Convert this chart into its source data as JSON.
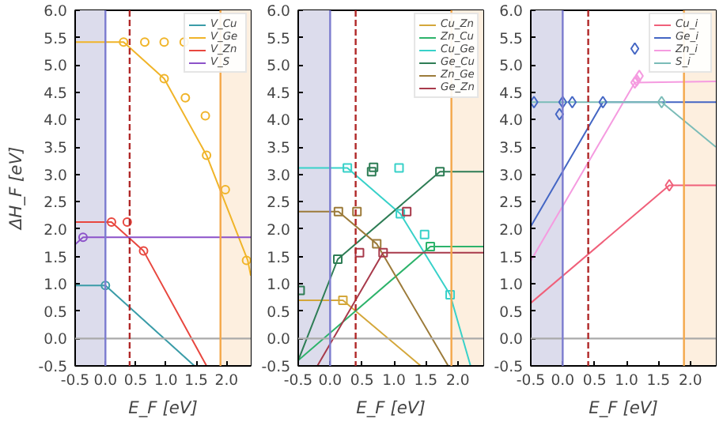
{
  "chart_data": [
    {
      "type": "line",
      "xlabel": "E_F [eV]",
      "ylabel": "ΔH_F [eV]",
      "xlim": [
        -0.5,
        2.4
      ],
      "ylim": [
        -0.5,
        6.0
      ],
      "xticks": [
        -0.5,
        {
          "value": 0,
          "label": "0.0"
        },
        0.5,
        {
          "value": 1,
          "label": "1.0"
        },
        1.5,
        {
          "value": 2,
          "label": "2.0"
        }
      ],
      "yticks": [
        -0.5,
        {
          "value": 0,
          "label": "0.0"
        },
        0.5,
        {
          "value": 1,
          "label": "1.0"
        },
        1.5,
        {
          "value": 2,
          "label": "2.0"
        },
        2.5,
        {
          "value": 3,
          "label": "3.0"
        },
        3.5,
        {
          "value": 4,
          "label": "4.0"
        },
        4.5,
        {
          "value": 5,
          "label": "5.0"
        },
        5.5,
        {
          "value": 6,
          "label": "6.0"
        }
      ],
      "legend": "top right",
      "grid": false,
      "bands": [
        {
          "axis": "x",
          "from": -0.5,
          "to": 0.0,
          "color": "#dcdcec"
        },
        {
          "axis": "x",
          "from": 1.9,
          "to": 2.4,
          "color": "#fdefdf"
        }
      ],
      "ref_lines": [
        {
          "axis": "y",
          "value": 0.0,
          "color": "#aaaaaa"
        },
        {
          "axis": "x",
          "value": 0.0,
          "color": "#7c7cd0"
        },
        {
          "axis": "x",
          "value": 1.9,
          "color": "#f5a84a"
        },
        {
          "axis": "x",
          "value": 0.4,
          "color": "#b02828",
          "line_style": "dashed"
        }
      ],
      "series": [
        {
          "name": "V_Cu",
          "color": "#3a9ca8",
          "marker": "none",
          "x": [
            -0.5,
            0.0,
            1.47
          ],
          "values": [
            0.97,
            0.97,
            -0.5
          ]
        },
        {
          "name": "V_Ge",
          "color": "#f0b429",
          "marker": "none",
          "x": [
            -0.5,
            0.3,
            0.97,
            1.67,
            2.35,
            2.4
          ],
          "values": [
            5.42,
            5.42,
            4.75,
            3.35,
            1.43,
            1.15
          ]
        },
        {
          "name": "V_Zn",
          "color": "#e8473f",
          "marker": "none",
          "x": [
            -0.5,
            0.1,
            0.63,
            1.67
          ],
          "values": [
            2.13,
            2.13,
            1.6,
            -0.5
          ]
        },
        {
          "name": "V_S",
          "color": "#8c52c9",
          "marker": "none",
          "x": [
            -0.5,
            -0.37,
            2.4
          ],
          "values": [
            1.72,
            1.85,
            1.85
          ]
        },
        {
          "type": "scatter",
          "color": "#3a9ca8",
          "marker": "circle",
          "x": [
            0.0
          ],
          "values": [
            0.97
          ]
        },
        {
          "type": "scatter",
          "color": "#f0b429",
          "marker": "circle",
          "x": [
            0.3,
            0.97,
            1.67,
            2.33,
            0.65,
            0.97,
            1.3,
            1.32,
            1.65,
            1.98
          ],
          "values": [
            5.42,
            4.75,
            3.35,
            1.43,
            5.42,
            5.42,
            5.42,
            4.4,
            4.07,
            2.72
          ]
        },
        {
          "type": "scatter",
          "color": "#e8473f",
          "marker": "circle",
          "x": [
            0.1,
            0.63,
            0.36
          ],
          "values": [
            2.13,
            1.6,
            2.13
          ]
        },
        {
          "type": "scatter",
          "color": "#8c52c9",
          "marker": "circle",
          "x": [
            -0.37
          ],
          "values": [
            1.85
          ]
        }
      ]
    },
    {
      "type": "line",
      "xlabel": "E_F [eV]",
      "xlim": [
        -0.5,
        2.4
      ],
      "ylim": [
        -0.5,
        6.0
      ],
      "xticks": [
        -0.5,
        {
          "value": 0,
          "label": "0.0"
        },
        0.5,
        {
          "value": 1,
          "label": "1.0"
        },
        1.5,
        {
          "value": 2,
          "label": "2.0"
        }
      ],
      "yticks": [
        -0.5,
        {
          "value": 0,
          "label": "0.0"
        },
        0.5,
        {
          "value": 1,
          "label": "1.0"
        },
        1.5,
        {
          "value": 2,
          "label": "2.0"
        },
        2.5,
        {
          "value": 3,
          "label": "3.0"
        },
        3.5,
        {
          "value": 4,
          "label": "4.0"
        },
        4.5,
        {
          "value": 5,
          "label": "5.0"
        },
        5.5,
        {
          "value": 6,
          "label": "6.0"
        }
      ],
      "legend": "top right",
      "grid": false,
      "bands": [
        {
          "axis": "x",
          "from": -0.5,
          "to": 0.0,
          "color": "#dcdcec"
        },
        {
          "axis": "x",
          "from": 1.9,
          "to": 2.4,
          "color": "#fdefdf"
        }
      ],
      "ref_lines": [
        {
          "axis": "y",
          "value": 0.0,
          "color": "#aaaaaa"
        },
        {
          "axis": "x",
          "value": 0.0,
          "color": "#7c7cd0"
        },
        {
          "axis": "x",
          "value": 1.9,
          "color": "#f5a84a"
        },
        {
          "axis": "x",
          "value": 0.4,
          "color": "#b02828",
          "line_style": "dashed"
        }
      ],
      "series": [
        {
          "name": "Cu_Zn",
          "color": "#d4a73a",
          "marker": "none",
          "x": [
            -0.5,
            0.2,
            1.42
          ],
          "values": [
            0.7,
            0.7,
            -0.5
          ]
        },
        {
          "name": "Zn_Cu",
          "color": "#2db36b",
          "marker": "none",
          "x": [
            -0.5,
            1.57,
            2.4
          ],
          "values": [
            -0.4,
            1.68,
            1.68
          ]
        },
        {
          "name": "Cu_Ge",
          "color": "#38d1c9",
          "marker": "none",
          "x": [
            -0.5,
            0.27,
            1.1,
            1.88,
            2.2
          ],
          "values": [
            3.12,
            3.12,
            2.28,
            0.8,
            -0.5
          ]
        },
        {
          "name": "Ge_Cu",
          "color": "#2e7d55",
          "marker": "none",
          "x": [
            -0.5,
            0.12,
            1.72,
            2.4
          ],
          "values": [
            -0.4,
            1.45,
            3.05,
            3.05
          ]
        },
        {
          "name": "Zn_Ge",
          "color": "#9c7b3a",
          "marker": "none",
          "x": [
            -0.5,
            0.13,
            0.73,
            1.85
          ],
          "values": [
            2.32,
            2.32,
            1.73,
            -0.5
          ]
        },
        {
          "name": "Ge_Zn",
          "color": "#a83a4b",
          "marker": "none",
          "x": [
            -0.2,
            0.83,
            2.4
          ],
          "values": [
            -0.5,
            1.57,
            1.57
          ]
        },
        {
          "type": "scatter",
          "color": "#d4a73a",
          "marker": "square",
          "x": [
            0.2
          ],
          "values": [
            0.7
          ]
        },
        {
          "type": "scatter",
          "color": "#2db36b",
          "marker": "square",
          "x": [
            1.57
          ],
          "values": [
            1.68
          ]
        },
        {
          "type": "scatter",
          "color": "#38d1c9",
          "marker": "square",
          "x": [
            0.27,
            1.1,
            1.88,
            1.08,
            1.48
          ],
          "values": [
            3.12,
            2.28,
            0.8,
            3.12,
            1.9
          ]
        },
        {
          "type": "scatter",
          "color": "#2e7d55",
          "marker": "square",
          "x": [
            0.12,
            1.72,
            -0.47,
            0.65,
            0.68
          ],
          "values": [
            1.45,
            3.05,
            0.88,
            3.05,
            3.13
          ]
        },
        {
          "type": "scatter",
          "color": "#9c7b3a",
          "marker": "square",
          "x": [
            0.13,
            0.73,
            0.42
          ],
          "values": [
            2.32,
            1.73,
            2.32
          ]
        },
        {
          "type": "scatter",
          "color": "#a83a4b",
          "marker": "square",
          "x": [
            0.83,
            0.46,
            1.2
          ],
          "values": [
            1.57,
            1.57,
            2.32
          ]
        }
      ]
    },
    {
      "type": "line",
      "xlabel": "E_F [eV]",
      "xlim": [
        -0.5,
        2.4
      ],
      "ylim": [
        -0.5,
        6.0
      ],
      "xticks": [
        -0.5,
        {
          "value": 0,
          "label": "0.0"
        },
        0.5,
        {
          "value": 1,
          "label": "1.0"
        },
        1.5,
        {
          "value": 2,
          "label": "2.0"
        }
      ],
      "yticks": [
        -0.5,
        {
          "value": 0,
          "label": "0.0"
        },
        0.5,
        {
          "value": 1,
          "label": "1.0"
        },
        1.5,
        {
          "value": 2,
          "label": "2.0"
        },
        2.5,
        {
          "value": 3,
          "label": "3.0"
        },
        3.5,
        {
          "value": 4,
          "label": "4.0"
        },
        4.5,
        {
          "value": 5,
          "label": "5.0"
        },
        5.5,
        {
          "value": 6,
          "label": "6.0"
        }
      ],
      "legend": "top right",
      "grid": false,
      "bands": [
        {
          "axis": "x",
          "from": -0.5,
          "to": 0.0,
          "color": "#dcdcec"
        },
        {
          "axis": "x",
          "from": 1.9,
          "to": 2.4,
          "color": "#fdefdf"
        }
      ],
      "ref_lines": [
        {
          "axis": "y",
          "value": 0.0,
          "color": "#aaaaaa"
        },
        {
          "axis": "x",
          "value": 0.0,
          "color": "#7c7cd0"
        },
        {
          "axis": "x",
          "value": 1.9,
          "color": "#f5a84a"
        },
        {
          "axis": "x",
          "value": 0.4,
          "color": "#b02828",
          "line_style": "dashed"
        }
      ],
      "series": [
        {
          "name": "Cu_i",
          "color": "#f0607a",
          "marker": "none",
          "x": [
            -0.5,
            1.67,
            2.4
          ],
          "values": [
            0.65,
            2.8,
            2.8
          ]
        },
        {
          "name": "Ge_i",
          "color": "#4466c4",
          "marker": "none",
          "x": [
            -0.5,
            0.63,
            2.4
          ],
          "values": [
            2.05,
            4.32,
            4.32
          ]
        },
        {
          "name": "Zn_i",
          "color": "#f59be0",
          "marker": "none",
          "x": [
            -0.5,
            1.13,
            2.4
          ],
          "values": [
            1.42,
            4.68,
            4.7
          ]
        },
        {
          "name": "S_i",
          "color": "#7bbcb8",
          "marker": "none",
          "x": [
            -0.5,
            1.55,
            2.4
          ],
          "values": [
            4.32,
            4.32,
            3.5
          ]
        },
        {
          "type": "scatter",
          "color": "#f0607a",
          "marker": "diamond",
          "x": [
            1.67
          ],
          "values": [
            2.8
          ]
        },
        {
          "type": "scatter",
          "color": "#4466c4",
          "marker": "diamond",
          "x": [
            0.63,
            -0.45,
            0.0,
            -0.05,
            0.15,
            1.13
          ],
          "values": [
            4.32,
            4.32,
            4.32,
            4.1,
            4.32,
            5.3
          ]
        },
        {
          "type": "scatter",
          "color": "#f59be0",
          "marker": "diamond",
          "x": [
            1.13,
            1.16,
            1.2
          ],
          "values": [
            4.68,
            4.72,
            4.8
          ]
        },
        {
          "type": "scatter",
          "color": "#7bbcb8",
          "marker": "diamond",
          "x": [
            1.55
          ],
          "values": [
            4.32
          ]
        }
      ]
    }
  ]
}
